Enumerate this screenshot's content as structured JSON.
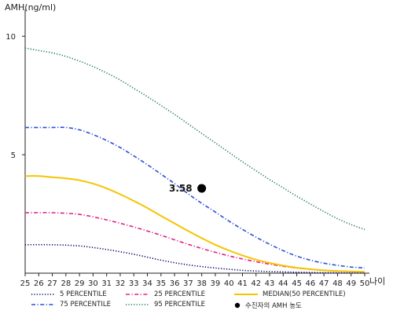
{
  "chart_data": {
    "type": "line",
    "ylabel": "AMH(ng/ml)",
    "xlabel": "나이",
    "xlim": [
      25,
      50
    ],
    "ylim": [
      0,
      11
    ],
    "yticks": [
      5,
      10
    ],
    "x": [
      25,
      26,
      27,
      28,
      29,
      30,
      31,
      32,
      33,
      34,
      35,
      36,
      37,
      38,
      39,
      40,
      41,
      42,
      43,
      44,
      45,
      46,
      47,
      48,
      49,
      50
    ],
    "grid": false,
    "series": [
      {
        "name": "5 PERCENTILE",
        "color": "#000066",
        "dash": "dot",
        "points": [
          [
            25,
            1.2
          ],
          [
            27,
            1.2
          ],
          [
            29,
            1.15
          ],
          [
            31,
            1.0
          ],
          [
            33,
            0.8
          ],
          [
            35,
            0.55
          ],
          [
            37,
            0.35
          ],
          [
            39,
            0.22
          ],
          [
            41,
            0.12
          ],
          [
            43,
            0.07
          ],
          [
            45,
            0.04
          ],
          [
            47,
            0.02
          ],
          [
            50,
            0.01
          ]
        ]
      },
      {
        "name": "25 PERCENTILE",
        "color": "#e0218a",
        "dash": "dashdot",
        "points": [
          [
            25,
            2.55
          ],
          [
            27,
            2.55
          ],
          [
            29,
            2.48
          ],
          [
            31,
            2.25
          ],
          [
            33,
            1.95
          ],
          [
            35,
            1.6
          ],
          [
            37,
            1.22
          ],
          [
            39,
            0.88
          ],
          [
            41,
            0.6
          ],
          [
            43,
            0.38
          ],
          [
            45,
            0.22
          ],
          [
            47,
            0.12
          ],
          [
            50,
            0.05
          ]
        ]
      },
      {
        "name": "MEDIAN(50 PERCENTILE)",
        "color": "#f5c400",
        "dash": "solid",
        "points": [
          [
            25,
            4.1
          ],
          [
            26,
            4.1
          ],
          [
            27,
            4.05
          ],
          [
            28,
            4.0
          ],
          [
            29,
            3.92
          ],
          [
            30,
            3.78
          ],
          [
            31,
            3.58
          ],
          [
            32,
            3.33
          ],
          [
            33,
            3.05
          ],
          [
            34,
            2.75
          ],
          [
            35,
            2.42
          ],
          [
            36,
            2.1
          ],
          [
            37,
            1.78
          ],
          [
            38,
            1.48
          ],
          [
            39,
            1.2
          ],
          [
            40,
            0.96
          ],
          [
            41,
            0.75
          ],
          [
            42,
            0.57
          ],
          [
            43,
            0.43
          ],
          [
            44,
            0.32
          ],
          [
            45,
            0.23
          ],
          [
            46,
            0.17
          ],
          [
            47,
            0.12
          ],
          [
            48,
            0.09
          ],
          [
            49,
            0.07
          ],
          [
            50,
            0.06
          ]
        ]
      },
      {
        "name": "75 PERCENTILE",
        "color": "#2d4fd6",
        "dash": "dashdot",
        "points": [
          [
            25,
            6.15
          ],
          [
            26,
            6.15
          ],
          [
            27,
            6.15
          ],
          [
            28,
            6.15
          ],
          [
            29,
            6.05
          ],
          [
            30,
            5.85
          ],
          [
            31,
            5.6
          ],
          [
            32,
            5.3
          ],
          [
            33,
            4.95
          ],
          [
            34,
            4.58
          ],
          [
            35,
            4.18
          ],
          [
            36,
            3.78
          ],
          [
            37,
            3.35
          ],
          [
            38,
            2.95
          ],
          [
            39,
            2.58
          ],
          [
            40,
            2.2
          ],
          [
            41,
            1.85
          ],
          [
            42,
            1.52
          ],
          [
            43,
            1.22
          ],
          [
            44,
            0.95
          ],
          [
            45,
            0.72
          ],
          [
            46,
            0.55
          ],
          [
            47,
            0.42
          ],
          [
            48,
            0.33
          ],
          [
            49,
            0.26
          ],
          [
            50,
            0.22
          ]
        ]
      },
      {
        "name": "95 PERCENTILE",
        "color": "#1f7a4a",
        "dash": "dot",
        "points": [
          [
            25,
            9.5
          ],
          [
            26,
            9.4
          ],
          [
            27,
            9.3
          ],
          [
            28,
            9.15
          ],
          [
            29,
            8.95
          ],
          [
            30,
            8.72
          ],
          [
            31,
            8.45
          ],
          [
            32,
            8.15
          ],
          [
            33,
            7.8
          ],
          [
            34,
            7.45
          ],
          [
            35,
            7.08
          ],
          [
            36,
            6.7
          ],
          [
            37,
            6.3
          ],
          [
            38,
            5.9
          ],
          [
            39,
            5.5
          ],
          [
            40,
            5.1
          ],
          [
            41,
            4.7
          ],
          [
            42,
            4.32
          ],
          [
            43,
            3.95
          ],
          [
            44,
            3.6
          ],
          [
            45,
            3.25
          ],
          [
            46,
            2.92
          ],
          [
            47,
            2.6
          ],
          [
            48,
            2.3
          ],
          [
            49,
            2.05
          ],
          [
            50,
            1.85
          ]
        ]
      }
    ],
    "marker": {
      "name": "수진자의 AMH 농도",
      "x": 38,
      "y": 3.58,
      "label": "3.58",
      "color": "#000000"
    },
    "legend": {
      "placement": "bottom",
      "order": [
        "5 PERCENTILE",
        "25 PERCENTILE",
        "MEDIAN(50 PERCENTILE)",
        "75 PERCENTILE",
        "95 PERCENTILE",
        "수진자의 AMH 농도"
      ]
    }
  }
}
